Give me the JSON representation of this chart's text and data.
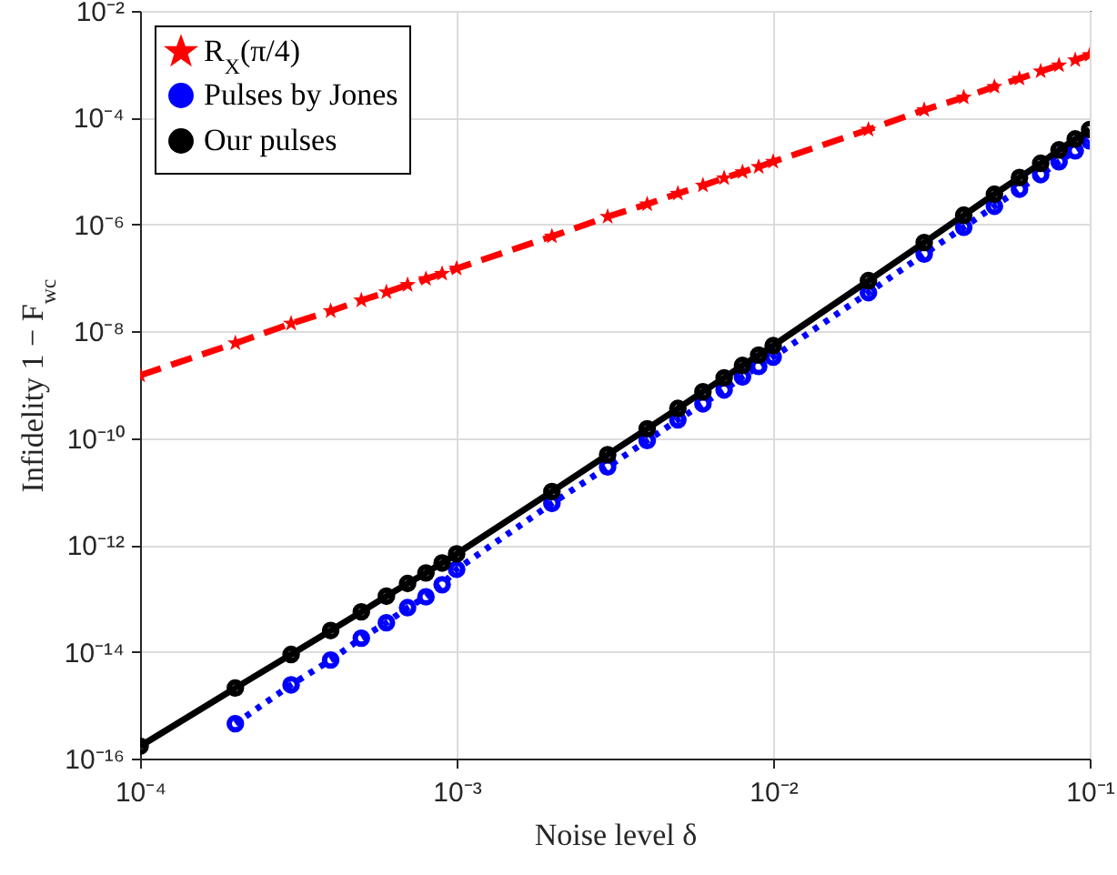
{
  "chart_data": {
    "type": "line",
    "xlabel": "Noise level δ",
    "ylabel": "Infidelity 1 − F$_{wc}$",
    "log": "xy",
    "grid": true,
    "legend": "top left",
    "xlim": [
      0.0001,
      0.1
    ],
    "ylim": [
      1e-16,
      0.01
    ],
    "xticks": [
      {
        "value": 0.0001,
        "label": "10⁻⁴"
      },
      {
        "value": 0.001,
        "label": "10⁻³"
      },
      {
        "value": 0.01,
        "label": "10⁻²"
      },
      {
        "value": 0.1,
        "label": "10⁻¹"
      }
    ],
    "yticks": [
      {
        "value": 1e-16,
        "label": "10⁻¹⁶"
      },
      {
        "value": 1e-14,
        "label": "10⁻¹⁴"
      },
      {
        "value": 1e-12,
        "label": "10⁻¹²"
      },
      {
        "value": 1e-10,
        "label": "10⁻¹⁰"
      },
      {
        "value": 1e-08,
        "label": "10⁻⁸"
      },
      {
        "value": 1e-06,
        "label": "10⁻⁶"
      },
      {
        "value": 0.0001,
        "label": "10⁻⁴"
      },
      {
        "value": 0.01,
        "label": "10⁻²"
      }
    ],
    "x": [
      0.0001,
      0.0002,
      0.0003,
      0.0004,
      0.0005,
      0.0006,
      0.0007,
      0.0008,
      0.0009,
      0.001,
      0.002,
      0.003,
      0.004,
      0.005,
      0.006,
      0.007,
      0.008,
      0.009,
      0.01,
      0.02,
      0.03,
      0.04,
      0.05,
      0.06,
      0.07,
      0.08,
      0.09,
      0.1
    ],
    "series": [
      {
        "name": "R$_{X}$(π/4)",
        "color": "#ff0000",
        "line_style": "dashed",
        "marker": "star",
        "values": [
          1.5e-09,
          6e-09,
          1.4e-08,
          2.4e-08,
          3.8e-08,
          5.4e-08,
          7.4e-08,
          9.6e-08,
          1.2e-07,
          1.5e-07,
          6e-07,
          1.4e-06,
          2.4e-06,
          3.8e-06,
          5.4e-06,
          7.4e-06,
          9.6e-06,
          1.2e-05,
          1.5e-05,
          6e-05,
          0.00014,
          0.00024,
          0.00038,
          0.00054,
          0.00074,
          0.00096,
          0.0012,
          0.0015
        ]
      },
      {
        "name": "Pulses by Jones",
        "color": "#0000ff",
        "line_style": "dotted",
        "marker": "circle",
        "x": [
          0.0002,
          0.0003,
          0.0004,
          0.0005,
          0.0006,
          0.0007,
          0.0008,
          0.0009,
          0.001,
          0.002,
          0.003,
          0.004,
          0.005,
          0.006,
          0.007,
          0.008,
          0.009,
          0.01,
          0.02,
          0.03,
          0.04,
          0.05,
          0.06,
          0.07,
          0.08,
          0.09,
          0.1
        ],
        "values": [
          4.5e-16,
          2.4e-15,
          7e-15,
          1.8e-14,
          3.5e-14,
          6.7e-14,
          1.07e-13,
          1.8e-13,
          3.5e-13,
          6e-12,
          2.9e-11,
          9e-11,
          2.2e-10,
          4.4e-10,
          8e-10,
          1.4e-09,
          2.2e-09,
          3.3e-09,
          5.3e-08,
          2.8e-07,
          8.9e-07,
          2.2e-06,
          4.6e-06,
          8.6e-06,
          1.5e-05,
          2.4e-05,
          3.7e-05
        ]
      },
      {
        "name": "Our pulses",
        "color": "#000000",
        "line_style": "solid",
        "marker": "circle",
        "values": [
          1.7e-16,
          2.1e-15,
          8.9e-15,
          2.5e-14,
          5.6e-14,
          1.1e-13,
          1.9e-13,
          3e-13,
          4.6e-13,
          6.8e-13,
          1e-11,
          4.9e-11,
          1.5e-10,
          3.6e-10,
          7.4e-10,
          1.35e-09,
          2.3e-09,
          3.6e-09,
          5.4e-09,
          8.9e-08,
          4.6e-07,
          1.5e-06,
          3.7e-06,
          7.6e-06,
          1.4e-05,
          2.5e-05,
          4e-05,
          6e-05
        ]
      }
    ]
  }
}
